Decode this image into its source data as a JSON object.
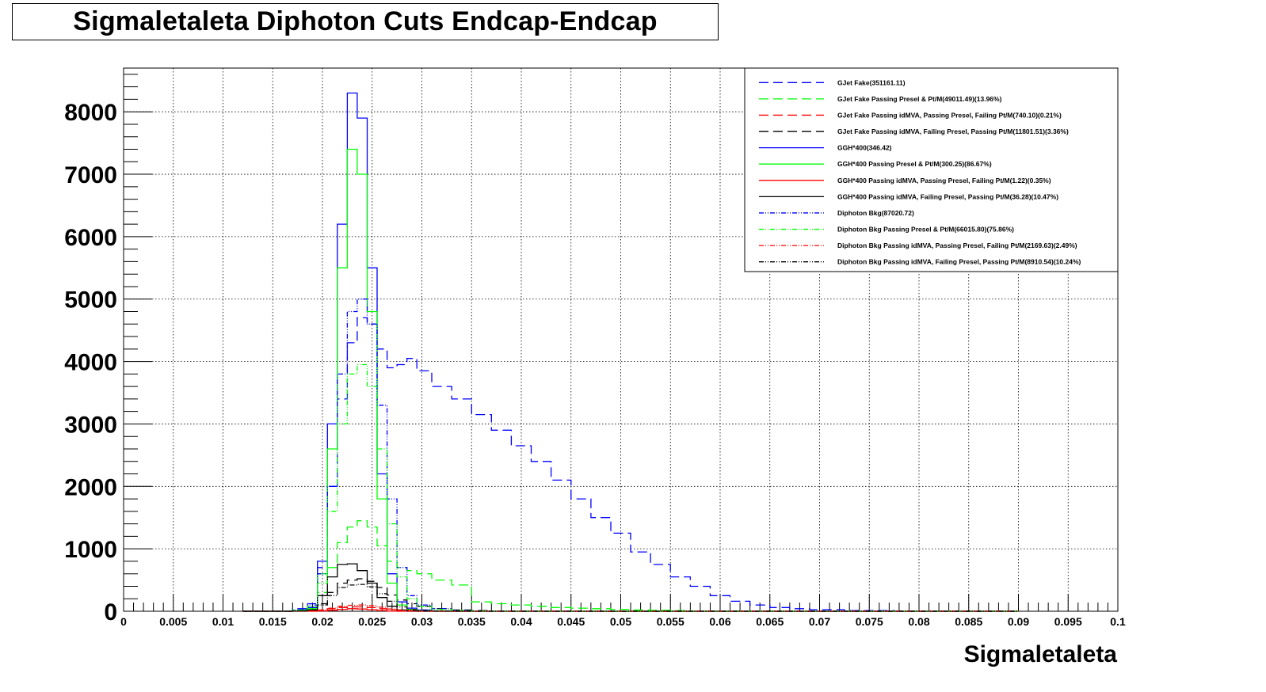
{
  "chart_data": {
    "type": "line",
    "title": "Sigmaletaleta Diphoton Cuts Endcap-Endcap",
    "xlabel": "Sigmaletaleta",
    "ylabel": "",
    "xlim": [
      0,
      0.1
    ],
    "ylim": [
      0,
      8700
    ],
    "grid": true,
    "legend_position": "top-right",
    "x_ticks": [
      "0",
      "0.005",
      "0.01",
      "0.015",
      "0.02",
      "0.025",
      "0.03",
      "0.035",
      "0.04",
      "0.045",
      "0.05",
      "0.055",
      "0.06",
      "0.065",
      "0.07",
      "0.075",
      "0.08",
      "0.085",
      "0.09",
      "0.095",
      "0.1"
    ],
    "y_ticks": [
      "0",
      "1000",
      "2000",
      "3000",
      "4000",
      "5000",
      "6000",
      "7000",
      "8000"
    ],
    "x": [
      0.012,
      0.014,
      0.016,
      0.018,
      0.019,
      0.02,
      0.021,
      0.022,
      0.023,
      0.024,
      0.025,
      0.026,
      0.027,
      0.028,
      0.029,
      0.03,
      0.032,
      0.034,
      0.036,
      0.038,
      0.04,
      0.042,
      0.044,
      0.046,
      0.048,
      0.05,
      0.052,
      0.054,
      0.056,
      0.058,
      0.06,
      0.062,
      0.064,
      0.066,
      0.068,
      0.07,
      0.075,
      0.08,
      0.09
    ],
    "series": [
      {
        "name": "GJet Fake(351161.11)",
        "color": "#0000ff",
        "style": "dashed",
        "values": [
          0,
          0,
          5,
          40,
          120,
          700,
          2000,
          3400,
          4300,
          4700,
          4600,
          4200,
          3900,
          3950,
          4050,
          3850,
          3600,
          3400,
          3150,
          2900,
          2650,
          2400,
          2100,
          1800,
          1500,
          1250,
          950,
          750,
          550,
          400,
          250,
          160,
          100,
          60,
          40,
          25,
          10,
          5,
          2
        ]
      },
      {
        "name": "GJet Fake Passing Presel & Pt/M(49011.49)(13.96%)",
        "color": "#00ff00",
        "style": "dashed",
        "values": [
          0,
          0,
          3,
          20,
          60,
          300,
          700,
          1100,
          1350,
          1450,
          1350,
          1050,
          800,
          700,
          650,
          600,
          500,
          420,
          150,
          120,
          100,
          80,
          60,
          50,
          40,
          30,
          20,
          15,
          10,
          5,
          3,
          2,
          0,
          0,
          0,
          0,
          0,
          0,
          0
        ]
      },
      {
        "name": "GJet Fake Passing idMVA, Passing Presel, Failing Pt/M(740.10)(0.21%)",
        "color": "#ff0000",
        "style": "dashed",
        "values": [
          0,
          0,
          0,
          2,
          5,
          15,
          40,
          60,
          70,
          70,
          60,
          40,
          25,
          15,
          10,
          8,
          5,
          3,
          2,
          1,
          0,
          0,
          0,
          0,
          0,
          0,
          0,
          0,
          0,
          0,
          0,
          0,
          0,
          0,
          0,
          0,
          0,
          0,
          0
        ]
      },
      {
        "name": "GJet Fake Passing idMVA, Failing Presel, Passing Pt/M(11801.51)(3.36%)",
        "color": "#000000",
        "style": "dashed",
        "values": [
          0,
          0,
          1,
          10,
          30,
          120,
          300,
          450,
          500,
          520,
          480,
          380,
          260,
          180,
          120,
          80,
          40,
          20,
          10,
          5,
          2,
          1,
          0,
          0,
          0,
          0,
          0,
          0,
          0,
          0,
          0,
          0,
          0,
          0,
          0,
          0,
          0,
          0,
          0
        ]
      },
      {
        "name": "GGH*400(346.42)",
        "color": "#0000ff",
        "style": "solid",
        "values": [
          0,
          0,
          0,
          5,
          60,
          800,
          3000,
          6200,
          8300,
          7900,
          5500,
          2200,
          600,
          150,
          50,
          20,
          5,
          0,
          0,
          0,
          0,
          0,
          0,
          0,
          0,
          0,
          0,
          0,
          0,
          0,
          0,
          0,
          0,
          0,
          0,
          0,
          0,
          0,
          0
        ]
      },
      {
        "name": "GGH*400 Passing Presel & Pt/M(300.25)(86.67%)",
        "color": "#00ff00",
        "style": "solid",
        "values": [
          0,
          0,
          0,
          3,
          40,
          600,
          2600,
          5500,
          7400,
          7000,
          4800,
          1800,
          450,
          100,
          30,
          10,
          3,
          0,
          0,
          0,
          0,
          0,
          0,
          0,
          0,
          0,
          0,
          0,
          0,
          0,
          0,
          0,
          0,
          0,
          0,
          0,
          0,
          0,
          0
        ]
      },
      {
        "name": "GGH*400 Passing idMVA, Passing Presel, Failing Pt/M(1.22)(0.35%)",
        "color": "#ff0000",
        "style": "solid",
        "values": [
          0,
          0,
          0,
          0,
          0,
          5,
          15,
          30,
          40,
          35,
          25,
          10,
          3,
          0,
          0,
          0,
          0,
          0,
          0,
          0,
          0,
          0,
          0,
          0,
          0,
          0,
          0,
          0,
          0,
          0,
          0,
          0,
          0,
          0,
          0,
          0,
          0,
          0,
          0
        ]
      },
      {
        "name": "GGH*400 Passing idMVA, Failing Presel, Passing Pt/M(36.28)(10.47%)",
        "color": "#000000",
        "style": "solid",
        "values": [
          0,
          0,
          0,
          2,
          20,
          250,
          550,
          750,
          760,
          650,
          450,
          220,
          80,
          20,
          5,
          0,
          0,
          0,
          0,
          0,
          0,
          0,
          0,
          0,
          0,
          0,
          0,
          0,
          0,
          0,
          0,
          0,
          0,
          0,
          0,
          0,
          0,
          0,
          0
        ]
      },
      {
        "name": "Diphoton Bkg(87020.72)",
        "color": "#0000ff",
        "style": "dashdot",
        "values": [
          0,
          0,
          2,
          20,
          100,
          600,
          2000,
          3800,
          4800,
          5000,
          4600,
          3300,
          1800,
          700,
          250,
          100,
          40,
          15,
          5,
          2,
          0,
          0,
          0,
          0,
          0,
          0,
          0,
          0,
          0,
          0,
          0,
          0,
          0,
          0,
          0,
          0,
          0,
          0,
          0
        ]
      },
      {
        "name": "Diphoton Bkg Passing Presel & Pt/M(66015.80)(75.86%)",
        "color": "#00ff00",
        "style": "dashdot",
        "values": [
          0,
          0,
          1,
          15,
          80,
          450,
          1600,
          3000,
          3800,
          3950,
          3600,
          2600,
          1400,
          550,
          200,
          80,
          30,
          10,
          3,
          1,
          0,
          0,
          0,
          0,
          0,
          0,
          0,
          0,
          0,
          0,
          0,
          0,
          0,
          0,
          0,
          0,
          0,
          0,
          0
        ]
      },
      {
        "name": "Diphoton Bkg Passing idMVA, Passing Presel, Failing Pt/M(2169.63)(2.49%)",
        "color": "#ff0000",
        "style": "dashdot",
        "values": [
          0,
          0,
          0,
          1,
          5,
          20,
          50,
          80,
          95,
          100,
          90,
          65,
          35,
          15,
          5,
          2,
          0,
          0,
          0,
          0,
          0,
          0,
          0,
          0,
          0,
          0,
          0,
          0,
          0,
          0,
          0,
          0,
          0,
          0,
          0,
          0,
          0,
          0,
          0
        ]
      },
      {
        "name": "Diphoton Bkg Passing idMVA, Failing Presel, Passing Pt/M(8910.54)(10.24%)",
        "color": "#000000",
        "style": "dashdot",
        "values": [
          0,
          0,
          0,
          5,
          20,
          100,
          250,
          380,
          420,
          430,
          390,
          280,
          160,
          70,
          25,
          10,
          3,
          1,
          0,
          0,
          0,
          0,
          0,
          0,
          0,
          0,
          0,
          0,
          0,
          0,
          0,
          0,
          0,
          0,
          0,
          0,
          0,
          0,
          0
        ]
      }
    ]
  }
}
